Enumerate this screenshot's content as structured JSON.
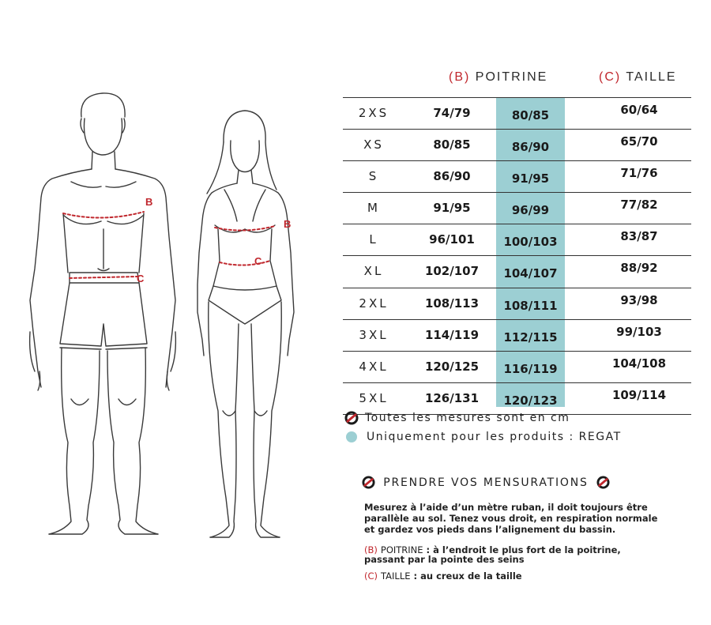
{
  "headers": {
    "b_letter": "(B)",
    "b_label": "POITRINE",
    "c_letter": "(C)",
    "c_label": "TAILLE"
  },
  "figure_labels": {
    "b": "B",
    "c": "C"
  },
  "rows": [
    {
      "size": "2XS",
      "b1": "74/79",
      "b2": "80/85",
      "c": "60/64"
    },
    {
      "size": "XS",
      "b1": "80/85",
      "b2": "86/90",
      "c": "65/70"
    },
    {
      "size": "S",
      "b1": "86/90",
      "b2": "91/95",
      "c": "71/76"
    },
    {
      "size": "M",
      "b1": "91/95",
      "b2": "96/99",
      "c": "77/82"
    },
    {
      "size": "L",
      "b1": "96/101",
      "b2": "100/103",
      "c": "83/87"
    },
    {
      "size": "XL",
      "b1": "102/107",
      "b2": "104/107",
      "c": "88/92"
    },
    {
      "size": "2XL",
      "b1": "108/113",
      "b2": "108/111",
      "c": "93/98"
    },
    {
      "size": "3XL",
      "b1": "114/119",
      "b2": "112/115",
      "c": "99/103"
    },
    {
      "size": "4XL",
      "b1": "120/125",
      "b2": "116/119",
      "c": "104/108"
    },
    {
      "size": "5XL",
      "b1": "126/131",
      "b2": "120/123",
      "c": "109/114"
    }
  ],
  "legend": {
    "units": "Toutes les mesures sont en cm",
    "regat": "Uniquement pour les produits : REGAT"
  },
  "colors": {
    "accent": "#c0272d",
    "highlight": "#9ccfd3"
  },
  "icons": {
    "brand": "brand-logo-icon"
  },
  "mensurations": {
    "title": "PRENDRE VOS MENSURATIONS",
    "intro_1": "Mesurez à l’aide d’un mètre ruban, il doit toujours être",
    "intro_2": "parallèle au sol. Tenez vous droit, en respiration normale",
    "intro_3": "et gardez vos pieds dans l’alignement du bassin.",
    "b_letter": "(B)",
    "b_label": "POITRINE",
    "b_text_1": " : à l’endroit le plus fort de la poitrine,",
    "b_text_2": "passant par la pointe des seins",
    "c_letter": "(C)",
    "c_label": "TAILLE",
    "c_text": " : au creux de la taille"
  }
}
